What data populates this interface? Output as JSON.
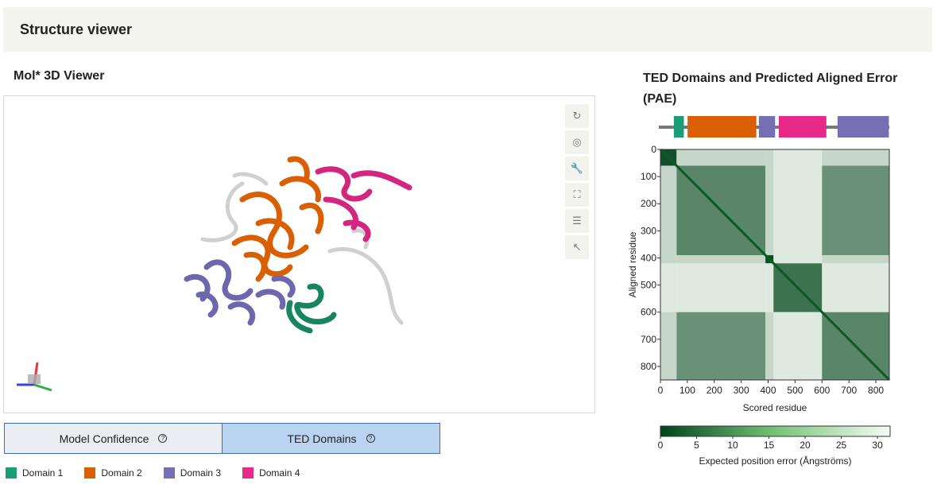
{
  "header": {
    "title": "Structure viewer"
  },
  "viewer": {
    "title": "Mol* 3D Viewer",
    "tools": [
      {
        "name": "reset-icon",
        "glyph": "↻"
      },
      {
        "name": "screenshot-icon",
        "glyph": "◎"
      },
      {
        "name": "wrench-icon",
        "glyph": "🔧"
      },
      {
        "name": "expand-icon",
        "glyph": "⛶"
      },
      {
        "name": "settings-icon",
        "glyph": "☰"
      },
      {
        "name": "pointer-icon",
        "glyph": "↖"
      }
    ]
  },
  "toggle": {
    "model_confidence": "Model Confidence",
    "ted_domains": "TED Domains",
    "help_glyph": "?"
  },
  "legend": {
    "items": [
      {
        "label": "Domain 1",
        "color": "#1b9e77"
      },
      {
        "label": "Domain 2",
        "color": "#d95f02"
      },
      {
        "label": "Domain 3",
        "color": "#7570b3"
      },
      {
        "label": "Domain 4",
        "color": "#e7298a"
      }
    ]
  },
  "pae": {
    "title": "TED Domains and Predicted Aligned Error (PAE)",
    "xlabel": "Scored residue",
    "ylabel": "Aligned residue",
    "ticks": [
      "0",
      "100",
      "200",
      "300",
      "400",
      "500",
      "600",
      "700",
      "800"
    ],
    "tick_values": [
      0,
      100,
      200,
      300,
      400,
      500,
      600,
      700,
      800
    ],
    "max_residue": 850,
    "domain_track": [
      {
        "start": 25,
        "end": 65,
        "color": "#1b9e77"
      },
      {
        "start": 80,
        "end": 355,
        "color": "#d95f02"
      },
      {
        "start": 365,
        "end": 430,
        "color": "#7570b3"
      },
      {
        "start": 445,
        "end": 635,
        "color": "#e7298a"
      },
      {
        "start": 680,
        "end": 885,
        "color": "#7570b3"
      }
    ],
    "blocks": [
      {
        "start": 0,
        "end": 60,
        "level": 0.15
      },
      {
        "start": 60,
        "end": 390,
        "level": 0.8
      },
      {
        "start": 390,
        "end": 420,
        "level": 0.1
      },
      {
        "start": 420,
        "end": 600,
        "level": 0.55
      },
      {
        "start": 600,
        "end": 850,
        "level": 0.8
      }
    ],
    "colorbar": {
      "label": "Expected position error (Ångströms)",
      "ticks": [
        "0",
        "5",
        "10",
        "15",
        "20",
        "25",
        "30"
      ],
      "tick_values": [
        0,
        5,
        10,
        15,
        20,
        25,
        30
      ],
      "max": 31.75,
      "color_low": "#00441b",
      "color_high": "#f7fcf5"
    }
  }
}
